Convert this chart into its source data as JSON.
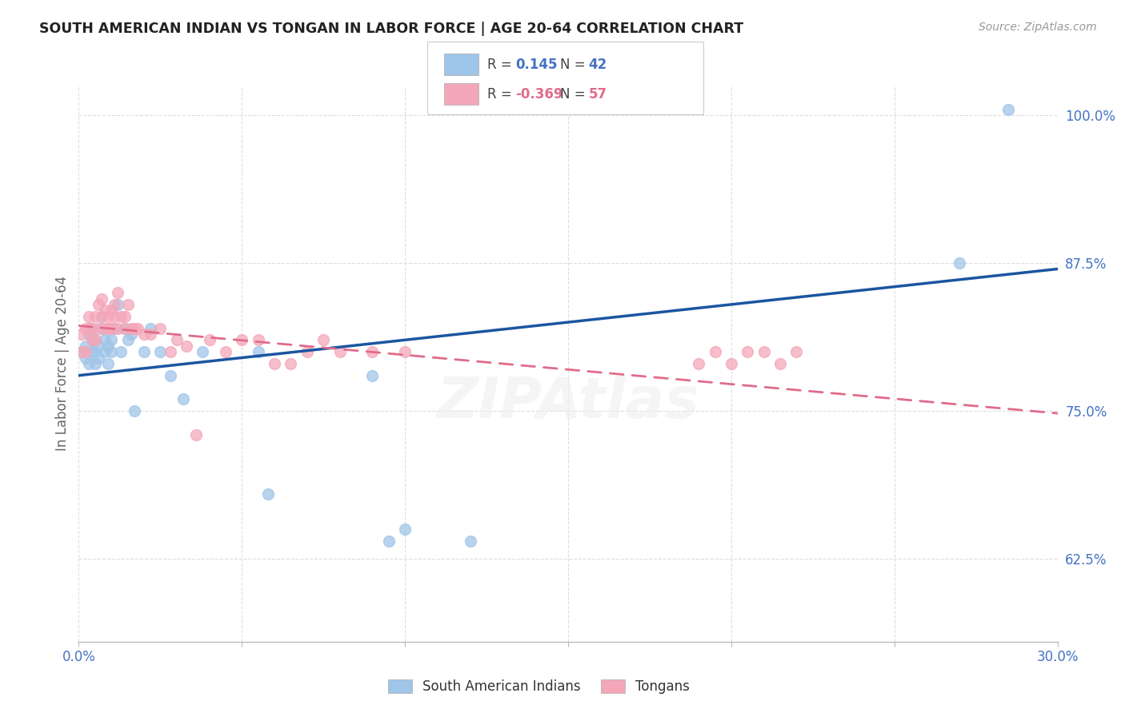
{
  "title": "SOUTH AMERICAN INDIAN VS TONGAN IN LABOR FORCE | AGE 20-64 CORRELATION CHART",
  "source": "Source: ZipAtlas.com",
  "ylabel": "In Labor Force | Age 20-64",
  "xlim": [
    0.0,
    0.3
  ],
  "ylim": [
    0.555,
    1.025
  ],
  "xticks": [
    0.0,
    0.05,
    0.1,
    0.15,
    0.2,
    0.25,
    0.3
  ],
  "yticks_right": [
    0.625,
    0.75,
    0.875,
    1.0
  ],
  "yticklabels_right": [
    "62.5%",
    "75.0%",
    "87.5%",
    "100.0%"
  ],
  "blue_color": "#9fc5e8",
  "pink_color": "#f4a7b9",
  "blue_line_color": "#1a56a0",
  "pink_line_color": "#e06c8a",
  "blue_R": "0.145",
  "blue_N": "42",
  "pink_R": "-0.369",
  "pink_N": "57",
  "legend_label_blue": "South American Indians",
  "legend_label_pink": "Tongans",
  "blue_scatter_x": [
    0.001,
    0.002,
    0.002,
    0.003,
    0.003,
    0.004,
    0.004,
    0.004,
    0.005,
    0.005,
    0.005,
    0.006,
    0.006,
    0.007,
    0.007,
    0.008,
    0.008,
    0.009,
    0.009,
    0.01,
    0.01,
    0.011,
    0.012,
    0.013,
    0.014,
    0.015,
    0.016,
    0.017,
    0.02,
    0.022,
    0.025,
    0.028,
    0.032,
    0.038,
    0.055,
    0.058,
    0.09,
    0.095,
    0.1,
    0.12,
    0.27,
    0.285
  ],
  "blue_scatter_y": [
    0.8,
    0.795,
    0.805,
    0.79,
    0.815,
    0.8,
    0.81,
    0.82,
    0.79,
    0.8,
    0.81,
    0.795,
    0.805,
    0.82,
    0.83,
    0.8,
    0.81,
    0.805,
    0.79,
    0.81,
    0.8,
    0.82,
    0.84,
    0.8,
    0.82,
    0.81,
    0.815,
    0.75,
    0.8,
    0.82,
    0.8,
    0.78,
    0.76,
    0.8,
    0.8,
    0.68,
    0.78,
    0.64,
    0.65,
    0.64,
    0.875,
    1.005
  ],
  "pink_scatter_x": [
    0.001,
    0.001,
    0.002,
    0.002,
    0.003,
    0.003,
    0.004,
    0.004,
    0.005,
    0.005,
    0.006,
    0.006,
    0.007,
    0.007,
    0.008,
    0.008,
    0.009,
    0.009,
    0.01,
    0.01,
    0.01,
    0.011,
    0.011,
    0.012,
    0.012,
    0.013,
    0.014,
    0.014,
    0.015,
    0.016,
    0.017,
    0.018,
    0.02,
    0.022,
    0.025,
    0.028,
    0.03,
    0.033,
    0.036,
    0.04,
    0.045,
    0.05,
    0.055,
    0.06,
    0.065,
    0.07,
    0.075,
    0.08,
    0.09,
    0.1,
    0.19,
    0.195,
    0.2,
    0.205,
    0.21,
    0.215,
    0.22
  ],
  "pink_scatter_y": [
    0.8,
    0.815,
    0.8,
    0.82,
    0.82,
    0.83,
    0.81,
    0.82,
    0.81,
    0.83,
    0.82,
    0.84,
    0.83,
    0.845,
    0.82,
    0.835,
    0.82,
    0.83,
    0.82,
    0.835,
    0.82,
    0.84,
    0.83,
    0.85,
    0.82,
    0.83,
    0.83,
    0.82,
    0.84,
    0.82,
    0.82,
    0.82,
    0.815,
    0.815,
    0.82,
    0.8,
    0.81,
    0.805,
    0.73,
    0.81,
    0.8,
    0.81,
    0.81,
    0.79,
    0.79,
    0.8,
    0.81,
    0.8,
    0.8,
    0.8,
    0.79,
    0.8,
    0.79,
    0.8,
    0.8,
    0.79,
    0.8
  ],
  "blue_trend_x": [
    0.0,
    0.3
  ],
  "blue_trend_y": [
    0.78,
    0.87
  ],
  "pink_trend_x": [
    0.0,
    0.3
  ],
  "pink_trend_y": [
    0.822,
    0.748
  ]
}
